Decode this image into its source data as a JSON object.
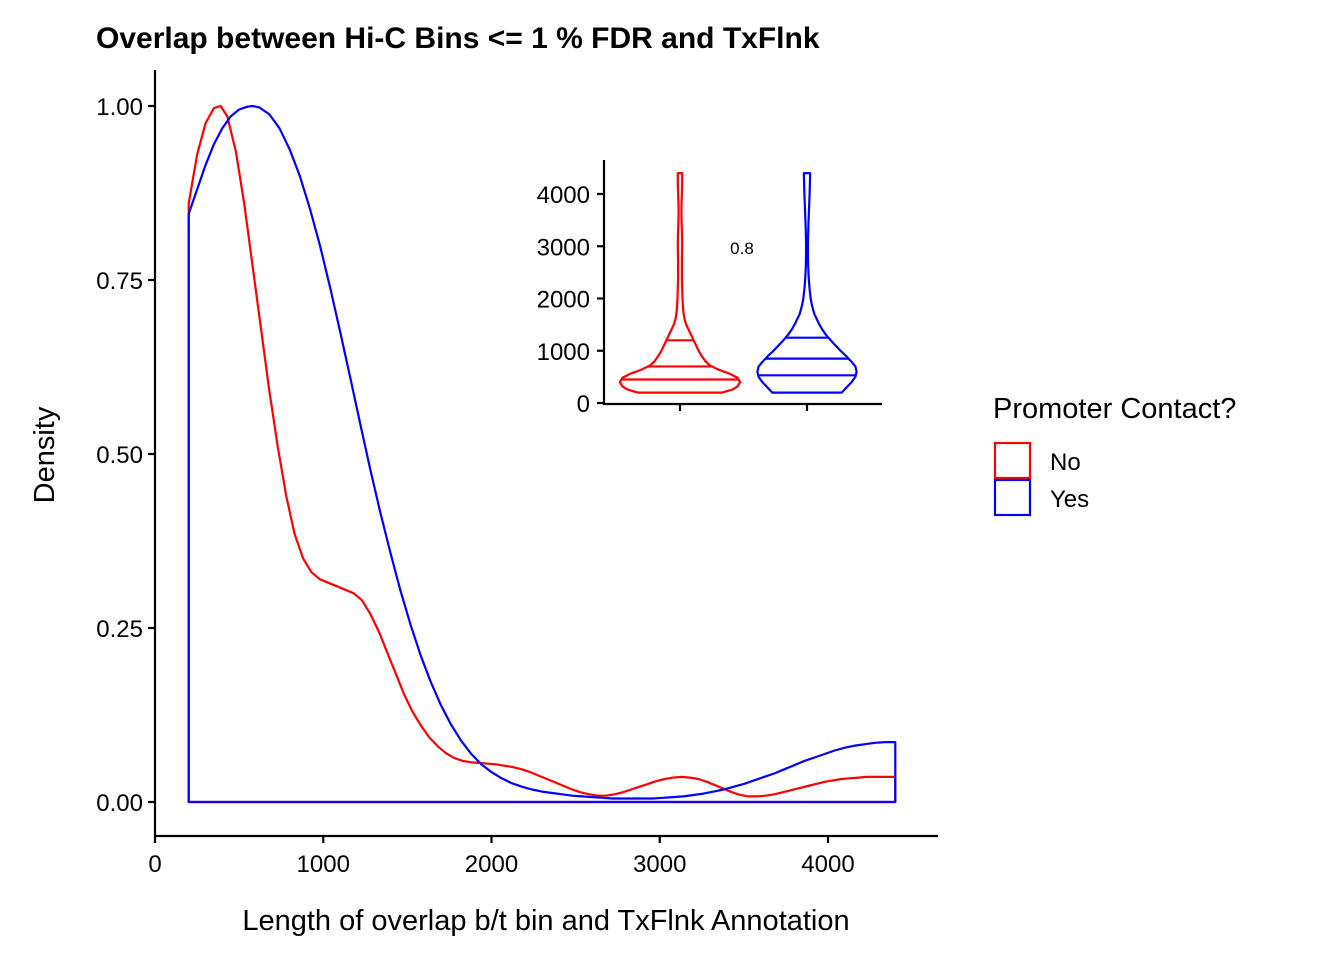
{
  "chart_data": [
    {
      "type": "area",
      "subtype": "density",
      "title": "Overlap between Hi-C Bins <= 1 % FDR and TxFlnk",
      "xlabel": "Length of overlap b/t bin and TxFlnk Annotation",
      "ylabel": "Density",
      "xlim": [
        0,
        4600
      ],
      "ylim": [
        -0.047,
        1.05
      ],
      "xticks": [
        0,
        1000,
        2000,
        3000,
        4000
      ],
      "xtick_labels": [
        "0",
        "1000",
        "2000",
        "3000",
        "4000"
      ],
      "yticks": [
        0,
        0.25,
        0.5,
        0.75,
        1
      ],
      "ytick_labels": [
        "0.00",
        "0.25",
        "0.50",
        "0.75",
        "1.00"
      ],
      "grid": false,
      "legend": {
        "title": "Promoter Contact?",
        "position": "right",
        "entries": [
          {
            "label": "No",
            "color": "#FF0000"
          },
          {
            "label": "Yes",
            "color": "#0000FF"
          }
        ]
      },
      "series": [
        {
          "name": "No",
          "color": "#FF0000",
          "x": [
            200,
            250,
            300,
            350,
            390,
            430,
            480,
            530,
            580,
            630,
            680,
            730,
            780,
            830,
            880,
            930,
            980,
            1030,
            1080,
            1130,
            1180,
            1230,
            1280,
            1330,
            1380,
            1430,
            1480,
            1530,
            1580,
            1630,
            1680,
            1730,
            1780,
            1830,
            1880,
            1930,
            1980,
            2030,
            2080,
            2130,
            2180,
            2230,
            2280,
            2330,
            2380,
            2430,
            2480,
            2530,
            2580,
            2630,
            2680,
            2730,
            2780,
            2830,
            2880,
            2930,
            2980,
            3030,
            3080,
            3130,
            3180,
            3230,
            3280,
            3330,
            3380,
            3430,
            3480,
            3530,
            3580,
            3630,
            3680,
            3730,
            3780,
            3830,
            3880,
            3930,
            3980,
            4030,
            4080,
            4130,
            4180,
            4230,
            4280,
            4330,
            4400
          ],
          "y": [
            0.86,
            0.93,
            0.975,
            0.997,
            1.0,
            0.985,
            0.935,
            0.86,
            0.77,
            0.68,
            0.59,
            0.51,
            0.44,
            0.385,
            0.35,
            0.33,
            0.32,
            0.315,
            0.31,
            0.305,
            0.3,
            0.29,
            0.27,
            0.245,
            0.215,
            0.185,
            0.155,
            0.13,
            0.11,
            0.093,
            0.08,
            0.07,
            0.063,
            0.059,
            0.057,
            0.056,
            0.055,
            0.054,
            0.052,
            0.05,
            0.047,
            0.043,
            0.038,
            0.033,
            0.028,
            0.023,
            0.018,
            0.014,
            0.011,
            0.009,
            0.009,
            0.011,
            0.014,
            0.018,
            0.022,
            0.026,
            0.03,
            0.033,
            0.035,
            0.036,
            0.035,
            0.033,
            0.029,
            0.024,
            0.019,
            0.014,
            0.01,
            0.008,
            0.008,
            0.009,
            0.011,
            0.014,
            0.017,
            0.02,
            0.023,
            0.026,
            0.029,
            0.031,
            0.033,
            0.034,
            0.035,
            0.036,
            0.036,
            0.036,
            0.036
          ]
        },
        {
          "name": "Yes",
          "color": "#0000FF",
          "x": [
            200,
            250,
            300,
            350,
            400,
            450,
            500,
            550,
            580,
            620,
            680,
            740,
            800,
            860,
            920,
            980,
            1040,
            1100,
            1160,
            1220,
            1280,
            1340,
            1400,
            1460,
            1520,
            1580,
            1640,
            1700,
            1760,
            1820,
            1880,
            1940,
            2000,
            2060,
            2120,
            2180,
            2240,
            2300,
            2360,
            2420,
            2480,
            2540,
            2600,
            2660,
            2720,
            2780,
            2840,
            2900,
            2960,
            3020,
            3080,
            3140,
            3200,
            3260,
            3320,
            3380,
            3440,
            3500,
            3560,
            3620,
            3680,
            3740,
            3800,
            3860,
            3920,
            3980,
            4040,
            4100,
            4160,
            4220,
            4280,
            4340,
            4400
          ],
          "y": [
            0.845,
            0.88,
            0.915,
            0.945,
            0.968,
            0.985,
            0.995,
            0.999,
            1.0,
            0.998,
            0.988,
            0.968,
            0.938,
            0.9,
            0.853,
            0.8,
            0.74,
            0.676,
            0.61,
            0.543,
            0.477,
            0.415,
            0.357,
            0.303,
            0.254,
            0.21,
            0.172,
            0.139,
            0.111,
            0.088,
            0.069,
            0.054,
            0.043,
            0.034,
            0.027,
            0.022,
            0.018,
            0.015,
            0.013,
            0.011,
            0.009,
            0.008,
            0.007,
            0.006,
            0.005,
            0.005,
            0.005,
            0.005,
            0.005,
            0.006,
            0.007,
            0.008,
            0.01,
            0.012,
            0.015,
            0.018,
            0.022,
            0.026,
            0.031,
            0.036,
            0.041,
            0.047,
            0.053,
            0.059,
            0.064,
            0.069,
            0.074,
            0.078,
            0.081,
            0.083,
            0.085,
            0.086,
            0.086
          ]
        }
      ]
    },
    {
      "type": "violin",
      "inset": true,
      "ylim": [
        0,
        4600
      ],
      "yticks": [
        0,
        1000,
        2000,
        3000,
        4000
      ],
      "ytick_labels": [
        "0",
        "1000",
        "2000",
        "3000",
        "4000"
      ],
      "annotation": "0.8",
      "series": [
        {
          "name": "No",
          "color": "#FF0000",
          "quantiles": [
            450,
            700,
            1200
          ],
          "profile": [
            [
              200,
              0.68
            ],
            [
              260,
              0.85
            ],
            [
              320,
              0.93
            ],
            [
              400,
              0.97
            ],
            [
              480,
              0.93
            ],
            [
              560,
              0.8
            ],
            [
              640,
              0.62
            ],
            [
              720,
              0.48
            ],
            [
              800,
              0.41
            ],
            [
              900,
              0.35
            ],
            [
              1000,
              0.3
            ],
            [
              1100,
              0.26
            ],
            [
              1200,
              0.22
            ],
            [
              1300,
              0.18
            ],
            [
              1400,
              0.14
            ],
            [
              1500,
              0.1
            ],
            [
              1600,
              0.075
            ],
            [
              1700,
              0.06
            ],
            [
              1800,
              0.05
            ],
            [
              1900,
              0.045
            ],
            [
              2000,
              0.04
            ],
            [
              2200,
              0.035
            ],
            [
              2400,
              0.03
            ],
            [
              2600,
              0.03
            ],
            [
              2800,
              0.032
            ],
            [
              3000,
              0.036
            ],
            [
              3200,
              0.034
            ],
            [
              3400,
              0.027
            ],
            [
              3600,
              0.022
            ],
            [
              3800,
              0.025
            ],
            [
              4000,
              0.03
            ],
            [
              4200,
              0.035
            ],
            [
              4400,
              0.036
            ]
          ]
        },
        {
          "name": "Yes",
          "color": "#0000FF",
          "quantiles": [
            530,
            850,
            1250
          ],
          "profile": [
            [
              200,
              0.56
            ],
            [
              300,
              0.64
            ],
            [
              400,
              0.72
            ],
            [
              500,
              0.78
            ],
            [
              600,
              0.8
            ],
            [
              700,
              0.78
            ],
            [
              800,
              0.71
            ],
            [
              900,
              0.63
            ],
            [
              1000,
              0.54
            ],
            [
              1100,
              0.46
            ],
            [
              1200,
              0.38
            ],
            [
              1300,
              0.31
            ],
            [
              1400,
              0.25
            ],
            [
              1500,
              0.2
            ],
            [
              1600,
              0.16
            ],
            [
              1700,
              0.12
            ],
            [
              1800,
              0.095
            ],
            [
              1900,
              0.075
            ],
            [
              2000,
              0.06
            ],
            [
              2200,
              0.04
            ],
            [
              2400,
              0.028
            ],
            [
              2600,
              0.02
            ],
            [
              2800,
              0.016
            ],
            [
              3000,
              0.015
            ],
            [
              3200,
              0.017
            ],
            [
              3400,
              0.022
            ],
            [
              3600,
              0.029
            ],
            [
              3800,
              0.036
            ],
            [
              4000,
              0.042
            ],
            [
              4200,
              0.047
            ],
            [
              4400,
              0.05
            ]
          ]
        }
      ]
    }
  ]
}
